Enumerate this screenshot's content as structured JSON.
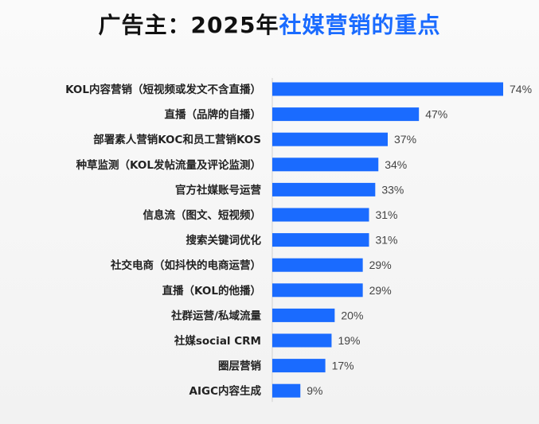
{
  "title": {
    "part1": "广告主：2025年",
    "part2": "社媒营销的重点"
  },
  "colors": {
    "bar": "#1a6bff",
    "title_highlight": "#1a6bff",
    "title_text": "#111111"
  },
  "chart_data": {
    "type": "bar",
    "orientation": "horizontal",
    "title": "广告主：2025年社媒营销的重点",
    "xlabel": "",
    "ylabel": "",
    "xlim": [
      0,
      74
    ],
    "grid": false,
    "legend": "none",
    "categories": [
      "KOL内容营销（短视频或发文不含直播）",
      "直播（品牌的自播）",
      "部署素人营销KOC和员工营销KOS",
      "种草监测（KOL发帖流量及评论监测）",
      "官方社媒账号运营",
      "信息流（图文、短视频）",
      "搜索关键词优化",
      "社交电商（如抖快的电商运营）",
      "直播（KOL的他播）",
      "社群运营/私域流量",
      "社媒social CRM",
      "圈层营销",
      "AIGC内容生成"
    ],
    "values": [
      74,
      47,
      37,
      34,
      33,
      31,
      31,
      29,
      29,
      20,
      19,
      17,
      9
    ],
    "value_labels": [
      "74%",
      "47%",
      "37%",
      "34%",
      "33%",
      "31%",
      "31%",
      "29%",
      "29%",
      "20%",
      "19%",
      "17%",
      "9%"
    ]
  }
}
